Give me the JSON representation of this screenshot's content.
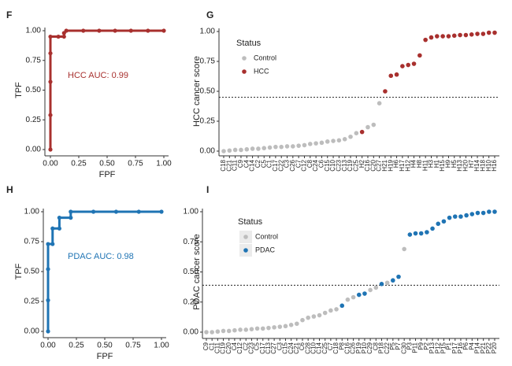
{
  "chart_data": [
    {
      "type": "roc",
      "panel": "F",
      "xlabel": "FPF",
      "ylabel": "TPF",
      "annotation": "HCC AUC: 0.99",
      "color": "#a8302e",
      "x": [
        0,
        0,
        0,
        0,
        0,
        0.07,
        0.12,
        0.12,
        0.14,
        0.29,
        0.43,
        0.57,
        0.71,
        0.86,
        1
      ],
      "values": [
        0,
        0.29,
        0.57,
        0.81,
        0.95,
        0.95,
        0.95,
        0.98,
        1,
        1,
        1,
        1,
        1,
        1,
        1
      ],
      "xlim": [
        0,
        1
      ],
      "ylim": [
        0,
        1
      ],
      "xticks": [
        {
          "value": 0,
          "label": "0.00"
        },
        {
          "value": 0.25,
          "label": "0.25"
        },
        {
          "value": 0.5,
          "label": "0.50"
        },
        {
          "value": 0.75,
          "label": "0.75"
        },
        {
          "value": 1,
          "label": "1.00"
        }
      ],
      "yticks": [
        {
          "value": 0,
          "label": "0.00"
        },
        {
          "value": 0.25,
          "label": "0.25"
        },
        {
          "value": 0.5,
          "label": "0.50"
        },
        {
          "value": 0.75,
          "label": "0.75"
        },
        {
          "value": 1,
          "label": "1.00"
        }
      ]
    },
    {
      "type": "dot",
      "panel": "G",
      "ylabel": "HCC cancer score",
      "legend_title": "Status",
      "threshold": 0.45,
      "categories": [
        "C18",
        "C21",
        "C11",
        "C9",
        "C4",
        "C14",
        "C2",
        "C5",
        "C1",
        "C17",
        "C22",
        "C3",
        "C26",
        "C7",
        "C12",
        "C8",
        "C24",
        "C6",
        "C15",
        "C10",
        "C23",
        "C13",
        "C19",
        "C25",
        "H2",
        "C16",
        "C20",
        "C27",
        "H21",
        "H19",
        "H6",
        "H17",
        "H12",
        "H4",
        "H8",
        "H11",
        "H3",
        "H1",
        "H15",
        "H9",
        "H5",
        "H13",
        "H20",
        "H7",
        "H14",
        "H18",
        "H10",
        "H16"
      ],
      "series": [
        {
          "name": "Control",
          "color": "#bdbdbd",
          "values": [
            0,
            0.005,
            0.01,
            0.01,
            0.015,
            0.02,
            0.02,
            0.025,
            0.03,
            0.035,
            0.035,
            0.04,
            0.04,
            0.045,
            0.05,
            0.06,
            0.065,
            0.07,
            0.08,
            0.085,
            0.09,
            0.1,
            0.12,
            0.15,
            null,
            0.2,
            0.22,
            0.4,
            null,
            null,
            null,
            null,
            null,
            null,
            null,
            null,
            null,
            null,
            null,
            null,
            null,
            null,
            null,
            null,
            null,
            null,
            null,
            null
          ]
        },
        {
          "name": "HCC",
          "color": "#a8302e",
          "values": [
            null,
            null,
            null,
            null,
            null,
            null,
            null,
            null,
            null,
            null,
            null,
            null,
            null,
            null,
            null,
            null,
            null,
            null,
            null,
            null,
            null,
            null,
            null,
            null,
            0.16,
            null,
            null,
            null,
            0.5,
            0.63,
            0.64,
            0.71,
            0.72,
            0.73,
            0.8,
            0.93,
            0.95,
            0.96,
            0.96,
            0.96,
            0.965,
            0.97,
            0.97,
            0.975,
            0.98,
            0.98,
            0.99,
            0.99
          ]
        }
      ],
      "ylim": [
        0,
        1
      ],
      "yticks": [
        {
          "value": 0,
          "label": "0.00"
        },
        {
          "value": 0.25,
          "label": "0.25"
        },
        {
          "value": 0.5,
          "label": "0.50"
        },
        {
          "value": 0.75,
          "label": "0.75"
        },
        {
          "value": 1,
          "label": "1.00"
        }
      ]
    },
    {
      "type": "roc",
      "panel": "H",
      "xlabel": "FPF",
      "ylabel": "TPF",
      "annotation": "PDAC AUC: 0.98",
      "color": "#1f74b4",
      "x": [
        0,
        0,
        0,
        0,
        0.04,
        0.04,
        0.1,
        0.1,
        0.2,
        0.2,
        0.4,
        0.6,
        0.8,
        1
      ],
      "values": [
        0,
        0.26,
        0.52,
        0.73,
        0.73,
        0.86,
        0.86,
        0.95,
        0.95,
        1,
        1,
        1,
        1,
        1
      ],
      "xlim": [
        0,
        1
      ],
      "ylim": [
        0,
        1
      ],
      "xticks": [
        {
          "value": 0,
          "label": "0.00"
        },
        {
          "value": 0.25,
          "label": "0.25"
        },
        {
          "value": 0.5,
          "label": "0.50"
        },
        {
          "value": 0.75,
          "label": "0.75"
        },
        {
          "value": 1,
          "label": "1.00"
        }
      ],
      "yticks": [
        {
          "value": 0,
          "label": "0.00"
        },
        {
          "value": 0.25,
          "label": "0.25"
        },
        {
          "value": 0.5,
          "label": "0.50"
        },
        {
          "value": 0.75,
          "label": "0.75"
        },
        {
          "value": 1,
          "label": "1.00"
        }
      ]
    },
    {
      "type": "dot",
      "panel": "I",
      "ylabel": "PDAC cancer score",
      "legend_title": "Status",
      "threshold": 0.39,
      "categories": [
        "C9",
        "C1",
        "C11",
        "C19",
        "C20",
        "C4",
        "C12",
        "C2",
        "C23",
        "C5",
        "C17",
        "C13",
        "C27",
        "C3",
        "C15",
        "C24",
        "C21",
        "C6",
        "C28",
        "C10",
        "C14",
        "C25",
        "C7",
        "C18",
        "P8",
        "C16",
        "C26",
        "P19",
        "P10",
        "C29",
        "C8",
        "P18",
        "C22",
        "P5",
        "P7",
        "C30",
        "P3",
        "P11",
        "P9",
        "P2",
        "P13",
        "P12",
        "P15",
        "P1",
        "P17",
        "P16",
        "P6",
        "P4",
        "P14",
        "P21",
        "P22",
        "P20"
      ],
      "series": [
        {
          "name": "Control",
          "color": "#bdbdbd",
          "values": [
            0,
            0,
            0.005,
            0.01,
            0.01,
            0.015,
            0.02,
            0.02,
            0.025,
            0.03,
            0.03,
            0.035,
            0.04,
            0.045,
            0.05,
            0.06,
            0.07,
            0.1,
            0.12,
            0.13,
            0.14,
            0.16,
            0.18,
            0.19,
            null,
            0.27,
            0.29,
            null,
            null,
            0.35,
            0.37,
            null,
            0.41,
            null,
            null,
            0.69,
            null,
            null,
            null,
            null,
            null,
            null,
            null,
            null,
            null,
            null,
            null,
            null,
            null,
            null,
            null,
            null
          ]
        },
        {
          "name": "PDAC",
          "color": "#1f74b4",
          "values": [
            null,
            null,
            null,
            null,
            null,
            null,
            null,
            null,
            null,
            null,
            null,
            null,
            null,
            null,
            null,
            null,
            null,
            null,
            null,
            null,
            null,
            null,
            null,
            null,
            0.22,
            null,
            null,
            0.31,
            0.32,
            null,
            null,
            0.4,
            null,
            0.43,
            0.46,
            null,
            0.81,
            0.82,
            0.82,
            0.83,
            0.86,
            0.9,
            0.92,
            0.95,
            0.96,
            0.96,
            0.97,
            0.98,
            0.99,
            0.99,
            1,
            1
          ]
        }
      ],
      "ylim": [
        0,
        1
      ],
      "yticks": [
        {
          "value": 0,
          "label": "0.00"
        },
        {
          "value": 0.25,
          "label": "0.25"
        },
        {
          "value": 0.5,
          "label": "0.50"
        },
        {
          "value": 0.75,
          "label": "0.75"
        },
        {
          "value": 1,
          "label": "1.00"
        }
      ]
    }
  ]
}
